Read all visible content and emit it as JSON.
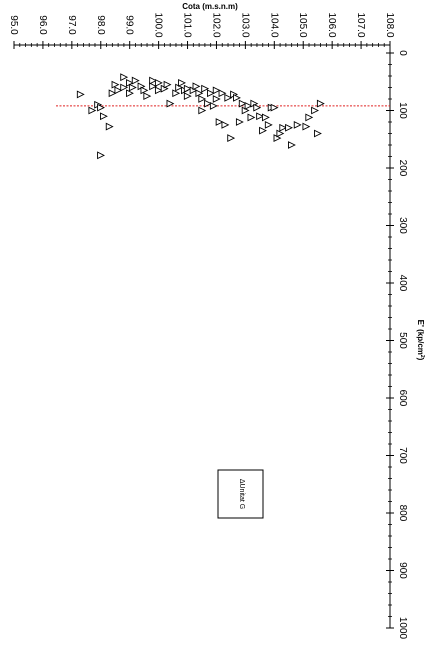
{
  "chart_data": {
    "type": "scatter",
    "orientation": "rotated-90-clockwise",
    "ylabel": "Cota (m.s.n.m)",
    "xlabel": "E' (kp/cm²)",
    "xlabel_parts": {
      "main": "E' (kp/cm",
      "sup": "2",
      "close": ")"
    },
    "cota_range": [
      95.0,
      108.0
    ],
    "cota_ticks": [
      "95.0",
      "96.0",
      "97.0",
      "98.0",
      "99.0",
      "100.0",
      "101.0",
      "102.0",
      "103.0",
      "104.0",
      "105.0",
      "106.0",
      "107.0",
      "108.0"
    ],
    "e_range": [
      0,
      1000
    ],
    "e_ticks": [
      "0",
      "100",
      "200",
      "300",
      "400",
      "500",
      "600",
      "700",
      "800",
      "900",
      "1000"
    ],
    "reference_line": {
      "E": 92,
      "color": "#e02020",
      "style": "dashed"
    },
    "legend": {
      "label": "ΔUnitat G",
      "placement": "lower-middle"
    },
    "series": [
      {
        "name": "Unitat G",
        "marker": "triangle",
        "points": [
          [
            97.3,
            72
          ],
          [
            97.7,
            100
          ],
          [
            97.9,
            90
          ],
          [
            98.0,
            95
          ],
          [
            98.0,
            178
          ],
          [
            98.1,
            110
          ],
          [
            98.3,
            128
          ],
          [
            98.4,
            70
          ],
          [
            98.5,
            55
          ],
          [
            98.6,
            65
          ],
          [
            98.8,
            60
          ],
          [
            98.8,
            42
          ],
          [
            99.0,
            52
          ],
          [
            99.0,
            70
          ],
          [
            99.1,
            60
          ],
          [
            99.2,
            48
          ],
          [
            99.4,
            58
          ],
          [
            99.5,
            65
          ],
          [
            99.6,
            75
          ],
          [
            99.8,
            58
          ],
          [
            99.8,
            48
          ],
          [
            100.0,
            65
          ],
          [
            100.0,
            52
          ],
          [
            100.2,
            62
          ],
          [
            100.3,
            55
          ],
          [
            100.4,
            88
          ],
          [
            100.6,
            70
          ],
          [
            100.7,
            60
          ],
          [
            100.8,
            52
          ],
          [
            100.9,
            65
          ],
          [
            101.0,
            75
          ],
          [
            101.0,
            62
          ],
          [
            101.2,
            65
          ],
          [
            101.3,
            58
          ],
          [
            101.4,
            70
          ],
          [
            101.5,
            80
          ],
          [
            101.5,
            100
          ],
          [
            101.6,
            62
          ],
          [
            101.7,
            88
          ],
          [
            101.8,
            70
          ],
          [
            101.9,
            92
          ],
          [
            102.0,
            65
          ],
          [
            102.0,
            80
          ],
          [
            102.1,
            120
          ],
          [
            102.2,
            70
          ],
          [
            102.3,
            125
          ],
          [
            102.4,
            78
          ],
          [
            102.5,
            148
          ],
          [
            102.6,
            72
          ],
          [
            102.7,
            78
          ],
          [
            102.8,
            120
          ],
          [
            102.9,
            88
          ],
          [
            103.0,
            100
          ],
          [
            103.1,
            92
          ],
          [
            103.2,
            112
          ],
          [
            103.3,
            88
          ],
          [
            103.4,
            95
          ],
          [
            103.5,
            110
          ],
          [
            103.6,
            135
          ],
          [
            103.7,
            112
          ],
          [
            103.8,
            125
          ],
          [
            103.9,
            95
          ],
          [
            104.0,
            95
          ],
          [
            104.1,
            148
          ],
          [
            104.2,
            140
          ],
          [
            104.3,
            130
          ],
          [
            104.5,
            130
          ],
          [
            104.6,
            160
          ],
          [
            104.8,
            125
          ],
          [
            105.1,
            128
          ],
          [
            105.2,
            112
          ],
          [
            105.4,
            100
          ],
          [
            105.5,
            140
          ],
          [
            105.6,
            88
          ]
        ]
      }
    ]
  }
}
